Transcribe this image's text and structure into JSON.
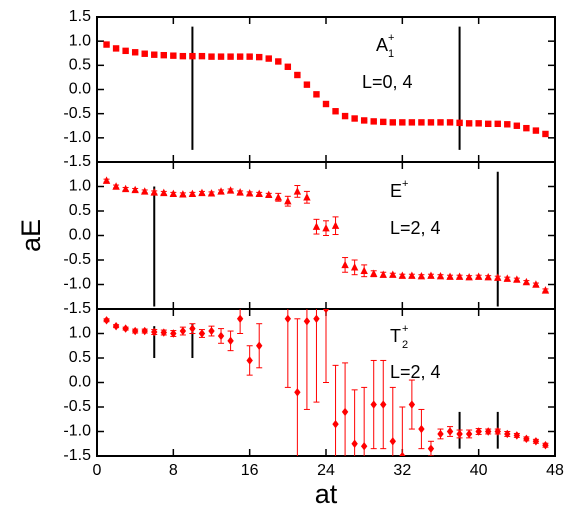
{
  "chart_data": [
    {
      "type": "scatter",
      "marker": "square",
      "color": "#ff0000",
      "label": {
        "text": "A",
        "sup": "+",
        "sub": "1"
      },
      "note": "L=0, 4",
      "xlim": [
        0,
        48
      ],
      "ylim": [
        -1.5,
        1.5
      ],
      "yticks": [
        1.5,
        {
          "value": 1,
          "label": "1.0"
        },
        0.5,
        {
          "value": 0,
          "label": "0.0"
        },
        -0.5,
        {
          "value": -1,
          "label": "-1.0"
        },
        -1.5
      ],
      "x": [
        1,
        2,
        3,
        4,
        5,
        6,
        7,
        8,
        9,
        10,
        11,
        12,
        13,
        14,
        15,
        16,
        17,
        18,
        19,
        20,
        21,
        22,
        23,
        24,
        25,
        26,
        27,
        28,
        29,
        30,
        31,
        32,
        33,
        34,
        35,
        36,
        37,
        38,
        39,
        40,
        41,
        42,
        43,
        44,
        45,
        46,
        47
      ],
      "values": [
        0.93,
        0.85,
        0.8,
        0.77,
        0.74,
        0.72,
        0.71,
        0.7,
        0.69,
        0.69,
        0.69,
        0.68,
        0.68,
        0.68,
        0.68,
        0.68,
        0.67,
        0.64,
        0.58,
        0.47,
        0.3,
        0.1,
        -0.1,
        -0.3,
        -0.45,
        -0.55,
        -0.6,
        -0.64,
        -0.66,
        -0.67,
        -0.68,
        -0.68,
        -0.68,
        -0.68,
        -0.68,
        -0.68,
        -0.68,
        -0.69,
        -0.7,
        -0.7,
        -0.71,
        -0.71,
        -0.72,
        -0.75,
        -0.8,
        -0.85,
        -0.92
      ],
      "errors": [
        0.02,
        0.02,
        0.02,
        0.02,
        0.02,
        0.02,
        0.02,
        0.02,
        0.02,
        0.02,
        0.02,
        0.02,
        0.02,
        0.02,
        0.02,
        0.02,
        0.02,
        0.02,
        0.04,
        0.04,
        0.04,
        0.04,
        0.04,
        0.04,
        0.04,
        0.04,
        0.04,
        0.02,
        0.02,
        0.02,
        0.02,
        0.02,
        0.02,
        0.02,
        0.02,
        0.02,
        0.02,
        0.02,
        0.02,
        0.02,
        0.02,
        0.02,
        0.02,
        0.02,
        0.02,
        0.02,
        0.02
      ],
      "vlines": [
        {
          "x": 10,
          "ymin": -1.25,
          "ymax": 1.3
        },
        {
          "x": 38,
          "ymin": -1.25,
          "ymax": 1.3
        }
      ]
    },
    {
      "type": "scatter",
      "marker": "triangle",
      "color": "#ff0000",
      "label": {
        "text": "E",
        "sup": "+"
      },
      "note": "L=2, 4",
      "ylabel": "aE",
      "xlim": [
        0,
        48
      ],
      "ylim": [
        -1.5,
        1.5
      ],
      "yticks": [
        {
          "value": 1,
          "label": "1.0"
        },
        0.5,
        {
          "value": 0,
          "label": "0.0"
        },
        -0.5,
        {
          "value": -1,
          "label": "-1.0"
        },
        -1.5
      ],
      "x": [
        1,
        2,
        3,
        4,
        5,
        6,
        7,
        8,
        9,
        10,
        11,
        12,
        13,
        14,
        15,
        16,
        17,
        18,
        19,
        20,
        21,
        22,
        23,
        24,
        25,
        26,
        27,
        28,
        29,
        30,
        31,
        32,
        33,
        34,
        35,
        36,
        37,
        38,
        39,
        40,
        41,
        42,
        43,
        44,
        45,
        46,
        47
      ],
      "values": [
        1.12,
        1.0,
        0.95,
        0.93,
        0.9,
        0.88,
        0.87,
        0.85,
        0.84,
        0.85,
        0.87,
        0.86,
        0.9,
        0.92,
        0.88,
        0.86,
        0.85,
        0.83,
        0.78,
        0.7,
        0.9,
        0.78,
        0.18,
        0.15,
        0.2,
        -0.6,
        -0.65,
        -0.72,
        -0.78,
        -0.8,
        -0.8,
        -0.82,
        -0.82,
        -0.83,
        -0.82,
        -0.83,
        -0.84,
        -0.84,
        -0.85,
        -0.84,
        -0.85,
        -0.86,
        -0.88,
        -0.9,
        -0.95,
        -1.0,
        -1.12
      ],
      "errors": [
        0.03,
        0.03,
        0.03,
        0.03,
        0.03,
        0.03,
        0.03,
        0.03,
        0.03,
        0.03,
        0.03,
        0.03,
        0.03,
        0.03,
        0.03,
        0.03,
        0.03,
        0.03,
        0.08,
        0.1,
        0.12,
        0.12,
        0.15,
        0.15,
        0.18,
        0.15,
        0.15,
        0.12,
        0.06,
        0.05,
        0.03,
        0.03,
        0.03,
        0.03,
        0.03,
        0.03,
        0.03,
        0.03,
        0.03,
        0.03,
        0.03,
        0.03,
        0.03,
        0.03,
        0.03,
        0.03,
        0.03
      ],
      "vlines": [
        {
          "x": 6,
          "ymin": -1.45,
          "ymax": 1.0
        },
        {
          "x": 42,
          "ymin": -1.45,
          "ymax": 1.3
        }
      ]
    },
    {
      "type": "scatter",
      "marker": "diamond",
      "color": "#ff0000",
      "label": {
        "text": "T",
        "sup": "+",
        "sub": "2"
      },
      "note": "L=2, 4",
      "xlabel": "at",
      "xlim": [
        0,
        48
      ],
      "ylim": [
        -1.5,
        1.5
      ],
      "xticks": [
        0,
        8,
        16,
        24,
        32,
        40,
        48
      ],
      "yticks": [
        {
          "value": 1,
          "label": "1.0"
        },
        0.5,
        {
          "value": 0,
          "label": "0.0"
        },
        -0.5,
        {
          "value": -1,
          "label": "-1.0"
        },
        -1.5
      ],
      "x": [
        1,
        2,
        3,
        4,
        5,
        6,
        7,
        8,
        9,
        10,
        11,
        12,
        13,
        14,
        15,
        16,
        17,
        18,
        19,
        20,
        21,
        22,
        23,
        24,
        25,
        26,
        27,
        28,
        29,
        30,
        31,
        32,
        33,
        34,
        35,
        36,
        37,
        38,
        39,
        40,
        41,
        42,
        43,
        44,
        45,
        46,
        47
      ],
      "values": [
        1.27,
        1.15,
        1.1,
        1.05,
        1.05,
        1.03,
        1.02,
        1.0,
        1.05,
        1.1,
        1.0,
        1.05,
        0.95,
        0.85,
        1.3,
        0.45,
        0.75,
        null,
        null,
        1.3,
        -0.2,
        1.25,
        1.3,
        1.5,
        -0.85,
        -0.6,
        -1.25,
        -1.3,
        -0.45,
        -0.45,
        -1.2,
        -1.5,
        -0.45,
        -0.95,
        -1.35,
        -1.05,
        -1.0,
        -1.05,
        -1.05,
        -1.0,
        -1.0,
        -1.0,
        -1.05,
        -1.08,
        -1.15,
        -1.2,
        -1.28
      ],
      "errors": [
        0.03,
        0.03,
        0.03,
        0.04,
        0.04,
        0.05,
        0.05,
        0.06,
        0.08,
        0.1,
        0.08,
        0.1,
        0.15,
        0.2,
        0.3,
        0.3,
        0.45,
        null,
        null,
        1.4,
        1.5,
        1.8,
        1.7,
        1.5,
        1.2,
        1.0,
        1.1,
        1.2,
        0.9,
        0.9,
        1.1,
        1.0,
        0.5,
        0.4,
        0.15,
        0.1,
        0.1,
        0.08,
        0.08,
        0.06,
        0.05,
        0.05,
        0.05,
        0.04,
        0.04,
        0.04,
        0.04
      ],
      "vlines": [
        {
          "x": 6,
          "ymin": 0.5,
          "ymax": 1.15
        },
        {
          "x": 10,
          "ymin": 0.5,
          "ymax": 1.2
        },
        {
          "x": 38,
          "ymin": -1.35,
          "ymax": -0.6
        },
        {
          "x": 42,
          "ymin": -1.35,
          "ymax": -0.6
        }
      ]
    }
  ]
}
